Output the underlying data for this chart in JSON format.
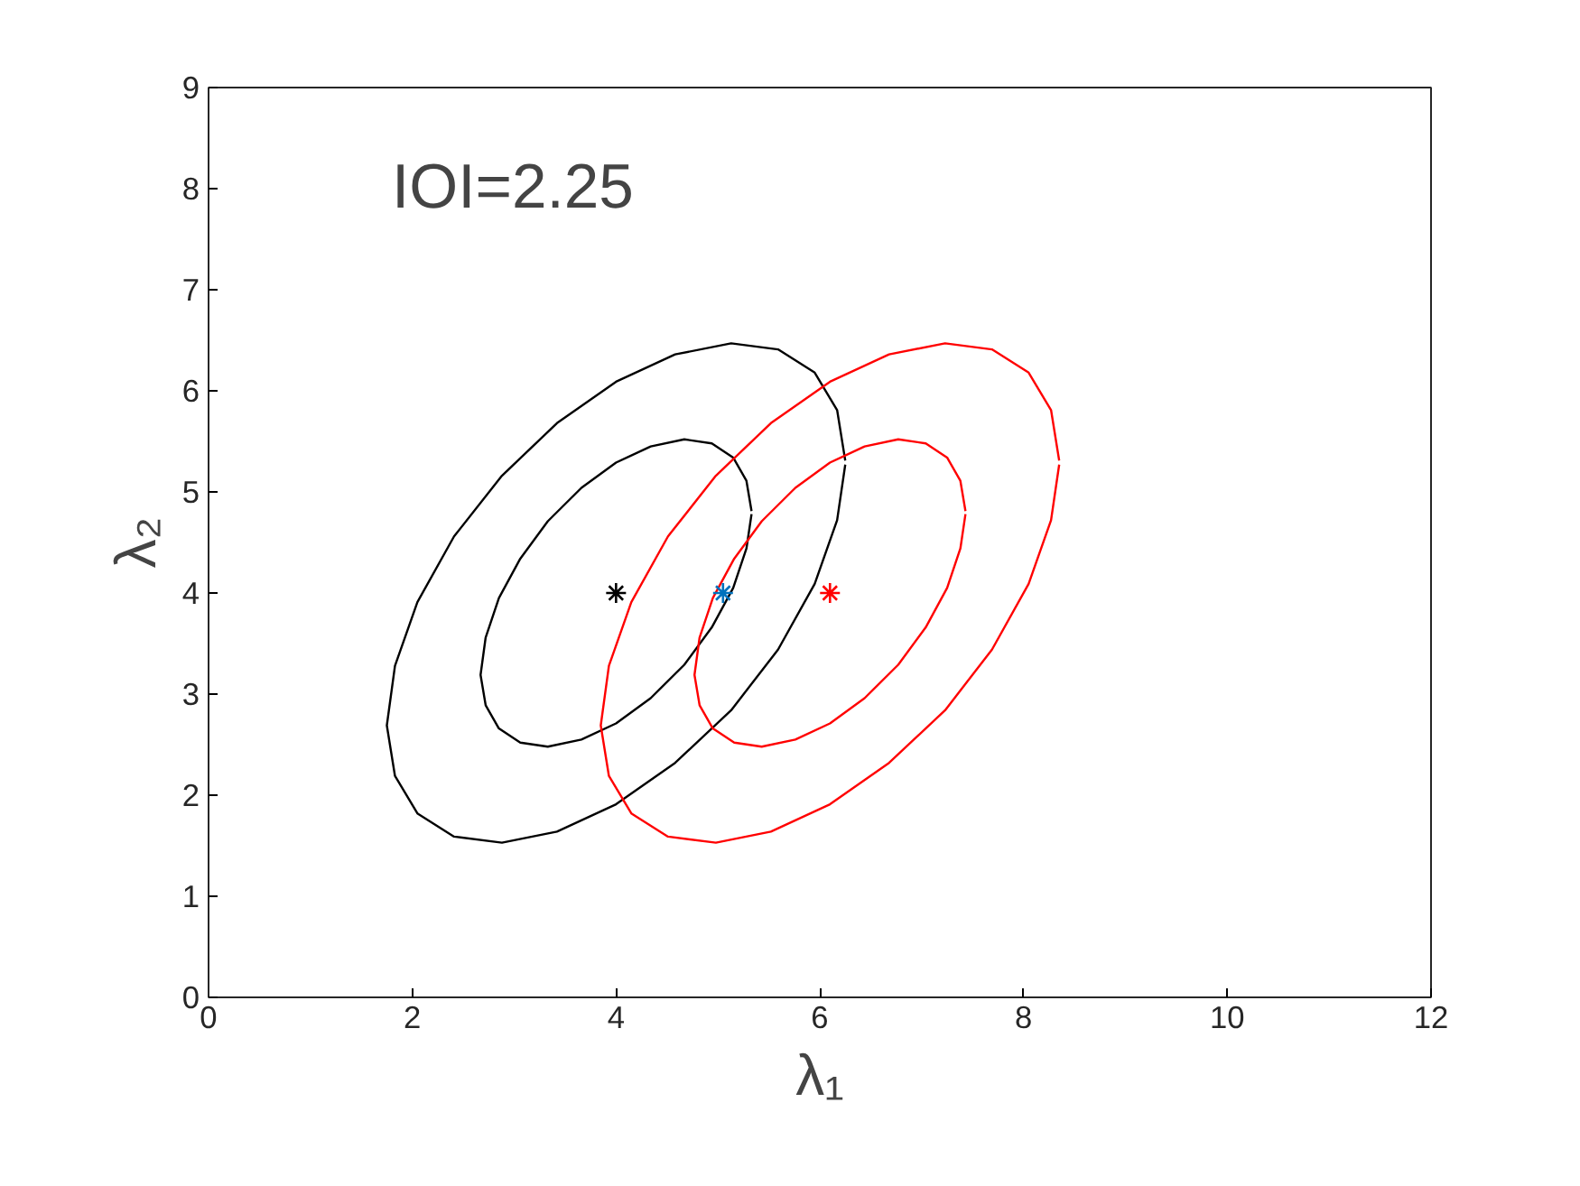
{
  "chart_data": {
    "type": "line",
    "xlabel": "λ₁",
    "ylabel": "λ₂",
    "annotations": [
      "IOI=2.25"
    ],
    "xlim": [
      0,
      12
    ],
    "xticks": [
      0,
      2,
      4,
      6,
      8,
      10,
      12
    ],
    "ylim": [
      0,
      9
    ],
    "yticks": [
      0,
      1,
      2,
      3,
      4,
      5,
      6,
      7,
      8,
      9
    ],
    "grid": false,
    "series": [
      {
        "type": "line",
        "marker": "none",
        "color": "#000000",
        "x": [
          6.25,
          6.17,
          5.95,
          5.59,
          5.13,
          4.58,
          4.0,
          3.42,
          2.88,
          2.41,
          2.05,
          1.83,
          1.75,
          1.83,
          2.05,
          2.41,
          2.88,
          3.42,
          4.0,
          4.58,
          5.13,
          5.59,
          5.95,
          6.17,
          6.25
        ],
        "values": [
          5.31,
          5.81,
          6.18,
          6.41,
          6.47,
          6.36,
          6.09,
          5.68,
          5.16,
          4.56,
          3.91,
          3.28,
          2.69,
          2.19,
          1.82,
          1.59,
          1.53,
          1.64,
          1.91,
          2.32,
          2.84,
          3.44,
          4.09,
          4.72,
          5.27
        ]
      },
      {
        "type": "line",
        "marker": "none",
        "color": "#000000",
        "x": [
          5.33,
          5.28,
          5.15,
          4.94,
          4.67,
          4.34,
          4.0,
          3.66,
          3.33,
          3.06,
          2.85,
          2.72,
          2.67,
          2.72,
          2.85,
          3.06,
          3.33,
          3.66,
          4.0,
          4.34,
          4.67,
          4.94,
          5.15,
          5.28,
          5.33
        ],
        "values": [
          4.81,
          5.11,
          5.34,
          5.48,
          5.52,
          5.45,
          5.29,
          5.04,
          4.71,
          4.34,
          3.95,
          3.56,
          3.19,
          2.89,
          2.66,
          2.52,
          2.48,
          2.55,
          2.71,
          2.96,
          3.29,
          3.66,
          4.05,
          4.44,
          4.78
        ]
      },
      {
        "type": "line",
        "marker": "none",
        "color": "#ff0000",
        "x": [
          8.35,
          8.27,
          8.05,
          7.69,
          7.23,
          6.68,
          6.1,
          5.52,
          4.98,
          4.51,
          4.15,
          3.93,
          3.85,
          3.93,
          4.15,
          4.51,
          4.98,
          5.52,
          6.1,
          6.68,
          7.23,
          7.69,
          8.05,
          8.27,
          8.35
        ],
        "values": [
          5.31,
          5.81,
          6.18,
          6.41,
          6.47,
          6.36,
          6.09,
          5.68,
          5.16,
          4.56,
          3.91,
          3.28,
          2.69,
          2.19,
          1.82,
          1.59,
          1.53,
          1.64,
          1.91,
          2.32,
          2.84,
          3.44,
          4.09,
          4.72,
          5.27
        ]
      },
      {
        "type": "line",
        "marker": "none",
        "color": "#ff0000",
        "x": [
          7.43,
          7.38,
          7.25,
          7.04,
          6.77,
          6.44,
          6.1,
          5.76,
          5.43,
          5.16,
          4.95,
          4.82,
          4.77,
          4.82,
          4.95,
          5.16,
          5.43,
          5.76,
          6.1,
          6.44,
          6.77,
          7.04,
          7.25,
          7.38,
          7.43
        ],
        "values": [
          4.81,
          5.11,
          5.34,
          5.48,
          5.52,
          5.45,
          5.29,
          5.04,
          4.71,
          4.34,
          3.95,
          3.56,
          3.19,
          2.89,
          2.66,
          2.52,
          2.48,
          2.55,
          2.71,
          2.96,
          3.29,
          3.66,
          4.05,
          4.44,
          4.78
        ]
      },
      {
        "type": "scatter",
        "marker": "cross",
        "color": "#000000",
        "x": [
          4.0
        ],
        "values": [
          4.0
        ]
      },
      {
        "type": "scatter",
        "marker": "cross",
        "color": "#0072bd",
        "x": [
          5.05
        ],
        "values": [
          4.0
        ]
      },
      {
        "type": "scatter",
        "marker": "cross",
        "color": "#ff0000",
        "x": [
          6.1
        ],
        "values": [
          4.0
        ]
      }
    ]
  }
}
